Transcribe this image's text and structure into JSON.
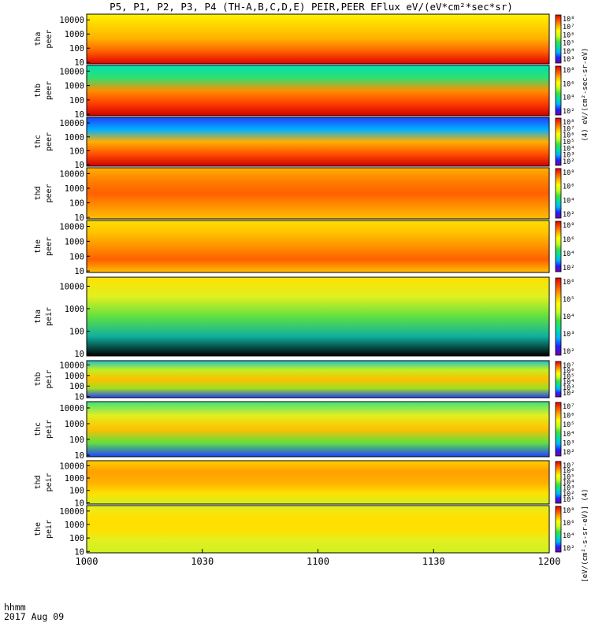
{
  "chart_data": {
    "type": "heatmap",
    "title": "P5, P1, P2, P3, P4 (TH-A,B,C,D,E) PEIR,PEER EFlux eV/(eV*cm²*sec*sr)",
    "colorbar_label_electron": "(4) eV/(cm²-sec-sr-eV)",
    "colorbar_label_ion": "[eV/(cm²-s-sr-eV)] (4)",
    "xlabel_line1": "hhmm",
    "xlabel_line2": "2017 Aug 09",
    "x_ticks": [
      "1000",
      "1030",
      "1100",
      "1130",
      "1200"
    ],
    "x_range_hhmm": [
      "1000",
      "1200"
    ],
    "y_scale": "log",
    "y_ticks": [
      "10000",
      "1000",
      "100",
      "10"
    ],
    "panels": [
      {
        "probe": "tha",
        "species": "peer",
        "colorbar_ticks": [
          "10⁸",
          "10⁷",
          "10⁶",
          "10⁵",
          "10⁴",
          "10³"
        ]
      },
      {
        "probe": "thb",
        "species": "peer",
        "colorbar_ticks": [
          "10⁸",
          "10⁶",
          "10⁴",
          "10²"
        ]
      },
      {
        "probe": "thc",
        "species": "peer",
        "colorbar_ticks": [
          "10⁸",
          "10⁷",
          "10⁶",
          "10⁵",
          "10⁴",
          "10³",
          "10²"
        ]
      },
      {
        "probe": "thd",
        "species": "peer",
        "colorbar_ticks": [
          "10⁸",
          "10⁶",
          "10⁴",
          "10²"
        ]
      },
      {
        "probe": "the",
        "species": "peer",
        "colorbar_ticks": [
          "10⁸",
          "10⁶",
          "10⁴",
          "10²"
        ]
      },
      {
        "probe": "tha",
        "species": "peir",
        "colorbar_ticks": [
          "10⁶",
          "10⁵",
          "10⁴",
          "10³",
          "10²"
        ]
      },
      {
        "probe": "thb",
        "species": "peir",
        "colorbar_ticks": [
          "10⁷",
          "10⁶",
          "10⁵",
          "10⁴",
          "10³",
          "10²"
        ]
      },
      {
        "probe": "thc",
        "species": "peir",
        "colorbar_ticks": [
          "10⁷",
          "10⁶",
          "10⁵",
          "10⁴",
          "10³",
          "10²"
        ]
      },
      {
        "probe": "thd",
        "species": "peir",
        "colorbar_ticks": [
          "10⁷",
          "10⁶",
          "10⁵",
          "10⁴",
          "10³",
          "10²",
          "10¹"
        ]
      },
      {
        "probe": "the",
        "species": "peir",
        "colorbar_ticks": [
          "10⁸",
          "10⁶",
          "10⁴",
          "10²"
        ]
      }
    ],
    "colormap": [
      "#ffffff",
      "#7a00a8",
      "#2020ff",
      "#00b0ff",
      "#00e0a0",
      "#40e040",
      "#c0ff20",
      "#ffff00",
      "#ffb000",
      "#ff5000",
      "#e00000"
    ],
    "grid": false
  }
}
